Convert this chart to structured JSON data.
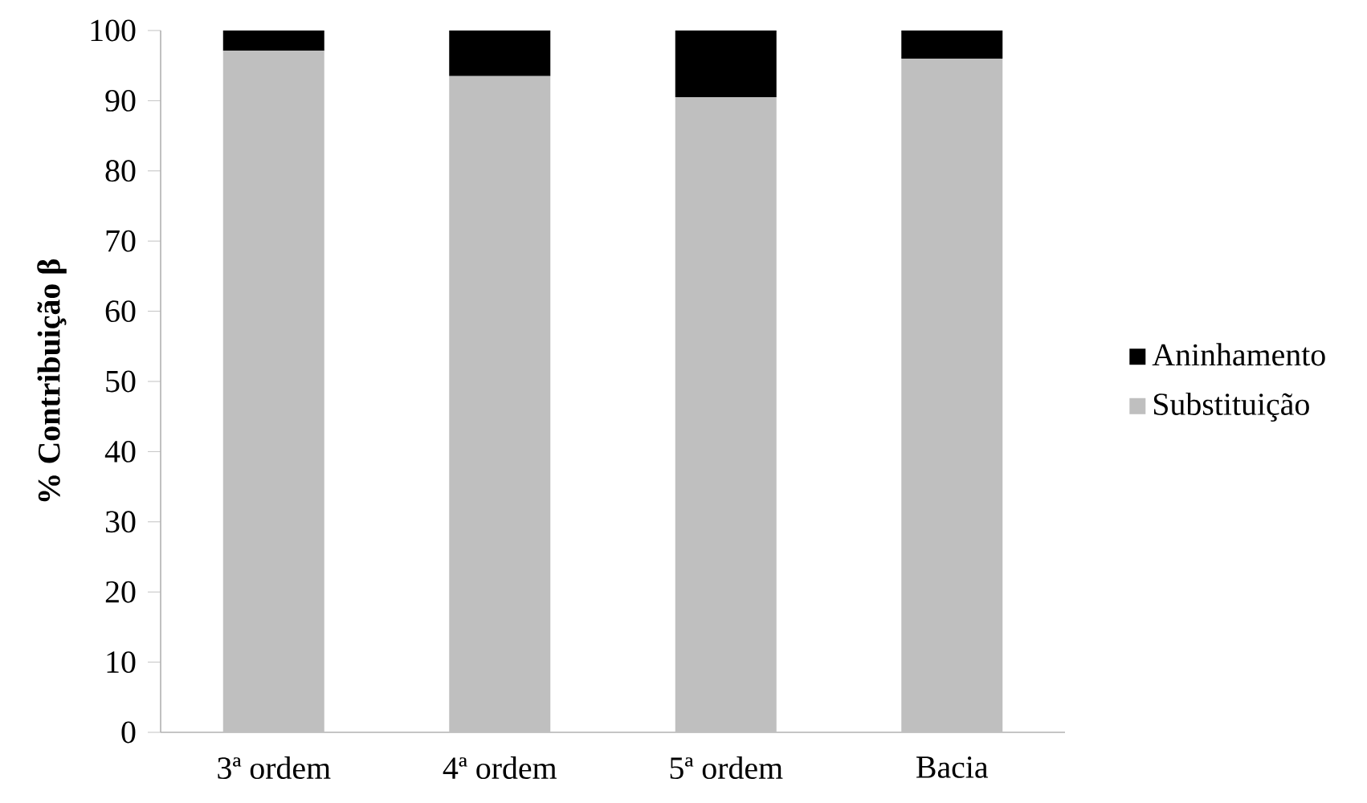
{
  "chart_data": {
    "type": "bar",
    "stacked": true,
    "ylabel": "% Contribuição β",
    "categories": [
      "3ª ordem",
      "4ª ordem",
      "5ª ordem",
      "Bacia"
    ],
    "series": [
      {
        "name": "Substituição",
        "color": "#bfbfbf",
        "values": [
          97.1,
          93.5,
          90.5,
          96.0
        ]
      },
      {
        "name": "Aninhamento",
        "color": "#000000",
        "values": [
          2.9,
          6.5,
          9.5,
          4.0
        ]
      }
    ],
    "ylim": [
      0,
      100
    ],
    "yticks": [
      0,
      10,
      20,
      30,
      40,
      50,
      60,
      70,
      80,
      90,
      100
    ],
    "legend": "right",
    "grid": false
  }
}
